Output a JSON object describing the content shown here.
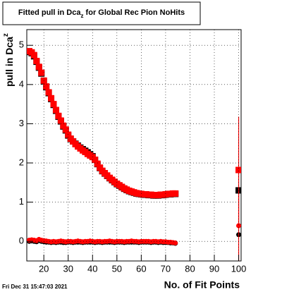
{
  "chart_data": {
    "type": "scatter",
    "title": {
      "main": "Fitted pull in Dca",
      "sub": "z",
      "rest": " for Global Rec Pion NoHits"
    },
    "x_label": "No. of Fit Points",
    "y_label": {
      "main": "pull in Dca",
      "sub": "z"
    },
    "footer": "Fri Dec 31 15:47:03 2021",
    "xlim": [
      13,
      101
    ],
    "ylim": [
      -0.5,
      5.4
    ],
    "xticks": [
      20,
      30,
      40,
      50,
      60,
      70,
      80,
      90,
      100
    ],
    "yticks": [
      0,
      1,
      2,
      3,
      4,
      5
    ],
    "grid": true,
    "x": [
      14,
      15,
      16,
      17,
      18,
      19,
      20,
      21,
      22,
      23,
      24,
      25,
      26,
      27,
      28,
      29,
      30,
      31,
      32,
      33,
      34,
      35,
      36,
      37,
      38,
      39,
      40,
      41,
      42,
      43,
      44,
      45,
      46,
      47,
      48,
      49,
      50,
      51,
      52,
      53,
      54,
      55,
      56,
      57,
      58,
      59,
      60,
      61,
      62,
      63,
      64,
      65,
      66,
      67,
      68,
      69,
      70,
      71,
      72,
      73,
      74,
      100
    ],
    "series": [
      {
        "color": "#000000",
        "marker": "square",
        "values": [
          4.83,
          4.8,
          4.72,
          4.58,
          4.43,
          4.28,
          4.08,
          3.93,
          3.78,
          3.63,
          3.48,
          3.33,
          3.18,
          3.06,
          2.93,
          2.83,
          2.7,
          2.61,
          2.55,
          2.49,
          2.44,
          2.39,
          2.35,
          2.31,
          2.27,
          2.22,
          2.17,
          2.08,
          1.97,
          1.87,
          1.79,
          1.73,
          1.67,
          1.61,
          1.56,
          1.51,
          1.46,
          1.42,
          1.38,
          1.34,
          1.31,
          1.28,
          1.26,
          1.24,
          1.22,
          1.21,
          1.2,
          1.19,
          1.19,
          1.18,
          1.18,
          1.17,
          1.17,
          1.17,
          1.18,
          1.18,
          1.19,
          1.2,
          1.2,
          1.21,
          1.21,
          1.3
        ]
      },
      {
        "color": "#ff0000",
        "marker": "square",
        "values": [
          4.85,
          4.82,
          4.75,
          4.6,
          4.45,
          4.3,
          4.1,
          3.95,
          3.8,
          3.65,
          3.5,
          3.35,
          3.2,
          3.08,
          2.95,
          2.85,
          2.72,
          2.62,
          2.55,
          2.48,
          2.42,
          2.37,
          2.32,
          2.28,
          2.23,
          2.19,
          2.15,
          2.08,
          1.98,
          1.88,
          1.8,
          1.74,
          1.68,
          1.62,
          1.57,
          1.52,
          1.47,
          1.43,
          1.39,
          1.35,
          1.32,
          1.29,
          1.27,
          1.25,
          1.23,
          1.22,
          1.21,
          1.2,
          1.2,
          1.19,
          1.19,
          1.18,
          1.18,
          1.18,
          1.19,
          1.19,
          1.2,
          1.21,
          1.21,
          1.22,
          1.22,
          1.82
        ],
        "errors": [
          null,
          null,
          null,
          null,
          null,
          null,
          null,
          null,
          null,
          null,
          null,
          null,
          null,
          null,
          null,
          null,
          null,
          null,
          null,
          null,
          null,
          null,
          null,
          null,
          null,
          null,
          null,
          null,
          null,
          null,
          null,
          null,
          null,
          null,
          null,
          null,
          null,
          null,
          null,
          null,
          null,
          null,
          null,
          null,
          null,
          null,
          null,
          null,
          null,
          null,
          null,
          null,
          null,
          null,
          null,
          null,
          null,
          null,
          null,
          null,
          null,
          1.36
        ]
      },
      {
        "color": "#000000",
        "marker": "circle",
        "values": [
          0.0,
          0.01,
          0.0,
          -0.01,
          0.02,
          0.0,
          -0.01,
          -0.02,
          -0.02,
          -0.03,
          -0.02,
          -0.03,
          -0.02,
          -0.02,
          -0.03,
          -0.03,
          -0.02,
          -0.02,
          -0.03,
          -0.02,
          -0.02,
          -0.02,
          -0.03,
          -0.02,
          -0.02,
          -0.02,
          -0.02,
          -0.03,
          -0.02,
          -0.02,
          -0.03,
          -0.02,
          -0.02,
          -0.02,
          -0.02,
          -0.03,
          -0.02,
          -0.02,
          -0.02,
          -0.03,
          -0.02,
          -0.02,
          -0.02,
          -0.02,
          -0.02,
          -0.03,
          -0.02,
          -0.02,
          -0.02,
          -0.02,
          -0.03,
          -0.02,
          -0.02,
          -0.03,
          -0.02,
          -0.03,
          -0.03,
          -0.03,
          -0.04,
          -0.04,
          -0.05,
          0.17
        ]
      },
      {
        "color": "#ff0000",
        "marker": "circle",
        "values": [
          0.03,
          0.04,
          0.03,
          0.02,
          0.05,
          0.03,
          0.02,
          0.01,
          0.0,
          -0.01,
          0.0,
          -0.01,
          0.0,
          0.01,
          0.0,
          -0.01,
          0.0,
          0.0,
          -0.01,
          0.0,
          0.01,
          0.0,
          -0.01,
          0.0,
          0.0,
          0.01,
          0.0,
          -0.01,
          0.0,
          0.0,
          -0.01,
          0.0,
          0.0,
          0.01,
          0.0,
          -0.01,
          0.0,
          0.0,
          0.0,
          -0.01,
          0.0,
          0.0,
          0.01,
          0.0,
          0.0,
          -0.01,
          0.0,
          0.0,
          0.0,
          0.0,
          -0.01,
          0.0,
          0.0,
          -0.01,
          0.0,
          -0.01,
          -0.01,
          -0.02,
          -0.02,
          -0.03,
          -0.04,
          0.4
        ],
        "errors": [
          null,
          null,
          null,
          null,
          null,
          null,
          null,
          null,
          null,
          null,
          null,
          null,
          null,
          null,
          null,
          null,
          null,
          null,
          null,
          null,
          null,
          null,
          null,
          null,
          null,
          null,
          null,
          null,
          null,
          null,
          null,
          null,
          null,
          null,
          null,
          null,
          null,
          null,
          null,
          null,
          null,
          null,
          null,
          null,
          null,
          null,
          null,
          null,
          null,
          null,
          null,
          null,
          null,
          null,
          null,
          null,
          null,
          null,
          null,
          null,
          null,
          1.0
        ]
      }
    ]
  }
}
